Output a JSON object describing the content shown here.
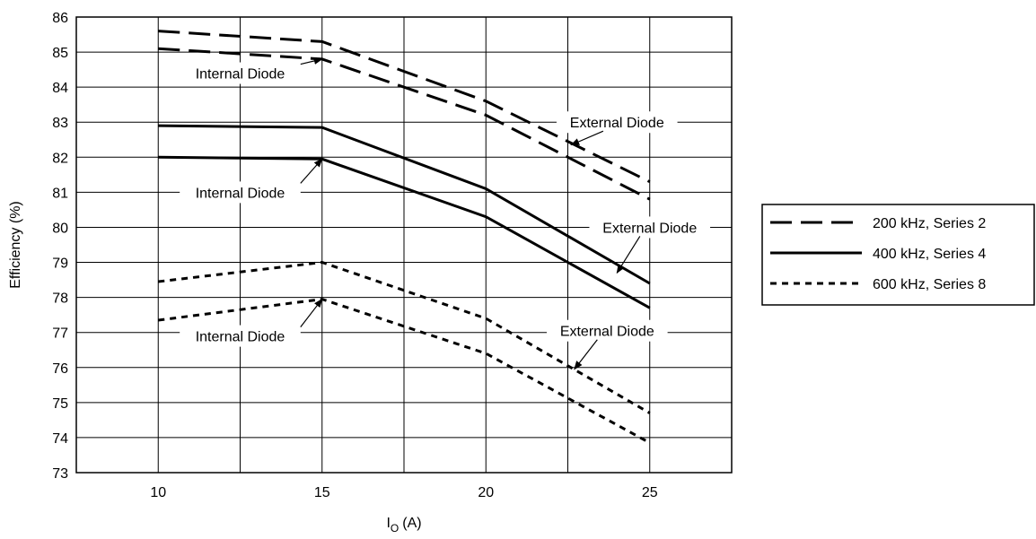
{
  "chart_data": {
    "type": "line",
    "xlabel": "I",
    "xlabel_sub": "O",
    "xlabel_unit": "(A)",
    "ylabel": "Efficiency (%)",
    "xlim": [
      7.5,
      27.5
    ],
    "ylim": [
      73,
      86
    ],
    "xticks": [
      10,
      15,
      20,
      25
    ],
    "yticks": [
      73,
      74,
      75,
      76,
      77,
      78,
      79,
      80,
      81,
      82,
      83,
      84,
      85,
      86
    ],
    "grid": true,
    "legend_position": "right",
    "legend": [
      {
        "label": "200 kHz, Series 2",
        "style": "long-dash"
      },
      {
        "label": "400 kHz, Series 4",
        "style": "solid"
      },
      {
        "label": "600 kHz, Series 8",
        "style": "short-dash"
      }
    ],
    "series": [
      {
        "group": "200 kHz, Series 2",
        "style": "long-dash",
        "variant": "External Diode",
        "x": [
          10,
          15,
          20,
          25
        ],
        "y": [
          85.6,
          85.3,
          83.6,
          81.3
        ]
      },
      {
        "group": "200 kHz, Series 2",
        "style": "long-dash",
        "variant": "Internal Diode",
        "x": [
          10,
          15,
          20,
          25
        ],
        "y": [
          85.1,
          84.8,
          83.2,
          80.8
        ]
      },
      {
        "group": "400 kHz, Series 4",
        "style": "solid",
        "variant": "External Diode",
        "x": [
          10,
          15,
          20,
          25
        ],
        "y": [
          82.9,
          82.85,
          81.1,
          78.4
        ]
      },
      {
        "group": "400 kHz, Series 4",
        "style": "solid",
        "variant": "Internal Diode",
        "x": [
          10,
          15,
          20,
          25
        ],
        "y": [
          82.0,
          81.95,
          80.3,
          77.7
        ]
      },
      {
        "group": "600 kHz, Series 8",
        "style": "short-dash",
        "variant": "External Diode",
        "x": [
          10,
          15,
          20,
          25
        ],
        "y": [
          78.45,
          79.0,
          77.4,
          74.7
        ]
      },
      {
        "group": "600 kHz, Series 8",
        "style": "short-dash",
        "variant": "Internal Diode",
        "x": [
          10,
          15,
          20,
          25
        ],
        "y": [
          77.35,
          77.95,
          76.4,
          73.85
        ]
      }
    ],
    "annotations": [
      {
        "text": "Internal Diode",
        "label_x": 12.5,
        "label_y": 84.4,
        "target_x": 15,
        "target_y": 84.8
      },
      {
        "text": "External Diode",
        "label_x": 24.0,
        "label_y": 83.0,
        "target_x": 22.6,
        "target_y": 82.35
      },
      {
        "text": "Internal Diode",
        "label_x": 12.5,
        "label_y": 81.0,
        "target_x": 15,
        "target_y": 81.95
      },
      {
        "text": "External Diode",
        "label_x": 25.0,
        "label_y": 80.0,
        "target_x": 24.0,
        "target_y": 78.7
      },
      {
        "text": "Internal Diode",
        "label_x": 12.5,
        "label_y": 76.9,
        "target_x": 15,
        "target_y": 77.95
      },
      {
        "text": "External Diode",
        "label_x": 23.7,
        "label_y": 77.05,
        "target_x": 22.7,
        "target_y": 75.95
      }
    ]
  }
}
